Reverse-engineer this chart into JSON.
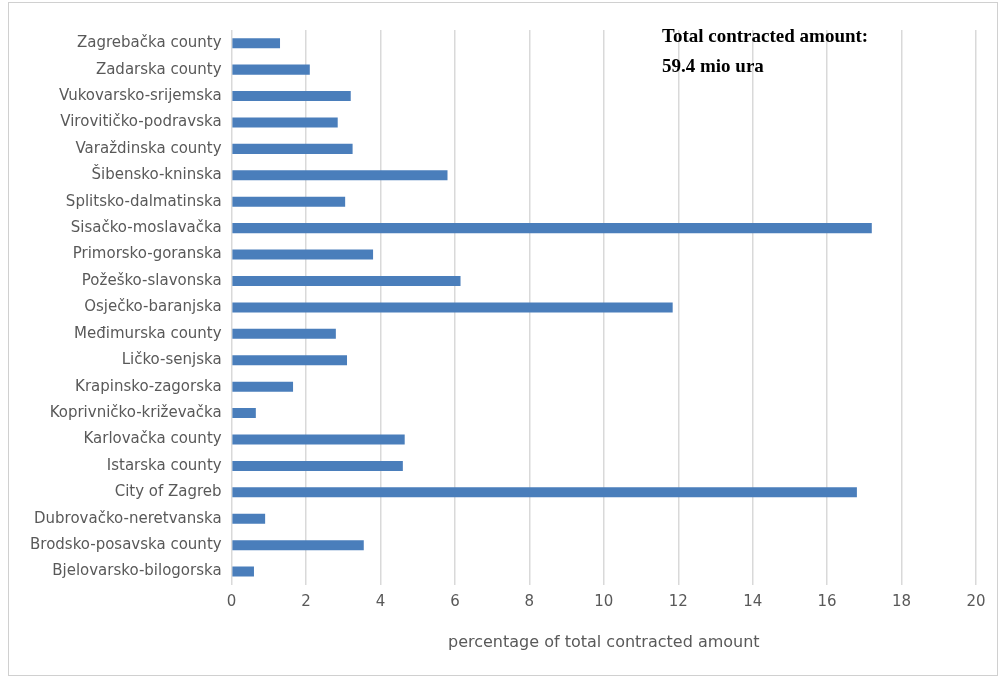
{
  "chart_data": {
    "type": "bar",
    "orientation": "horizontal",
    "xlabel": "percentage of total contracted amount",
    "categories": [
      "Zagrebačka county",
      "Zadarska county",
      "Vukovarsko-srijemska",
      "Virovitičko-podravska",
      "Varaždinska county",
      "Šibensko-kninska",
      "Splitsko-dalmatinska",
      "Sisačko-moslavačka",
      "Primorsko-goranska",
      "Požeško-slavonska",
      "Osječko-baranjska",
      "Međimurska county",
      "Ličko-senjska",
      "Krapinsko-zagorska",
      "Koprivničko-križevačka",
      "Karlovačka county",
      "Istarska county",
      "City of Zagreb",
      "Dubrovačko-neretvanska",
      "Brodsko-posavska county",
      "Bjelovarsko-bilogorska"
    ],
    "values": [
      1.3,
      2.1,
      3.2,
      2.85,
      3.25,
      5.8,
      3.05,
      17.2,
      3.8,
      6.15,
      11.85,
      2.8,
      3.1,
      1.65,
      0.65,
      4.65,
      4.6,
      16.8,
      0.9,
      3.55,
      0.6
    ],
    "color": "#4a7ebb",
    "xlim": [
      0,
      20
    ],
    "xticks": [
      0,
      2,
      4,
      6,
      8,
      10,
      12,
      14,
      16,
      18,
      20
    ],
    "grid": "x",
    "annotations": [
      "Total contracted amount: 59.4 mio ura"
    ]
  }
}
